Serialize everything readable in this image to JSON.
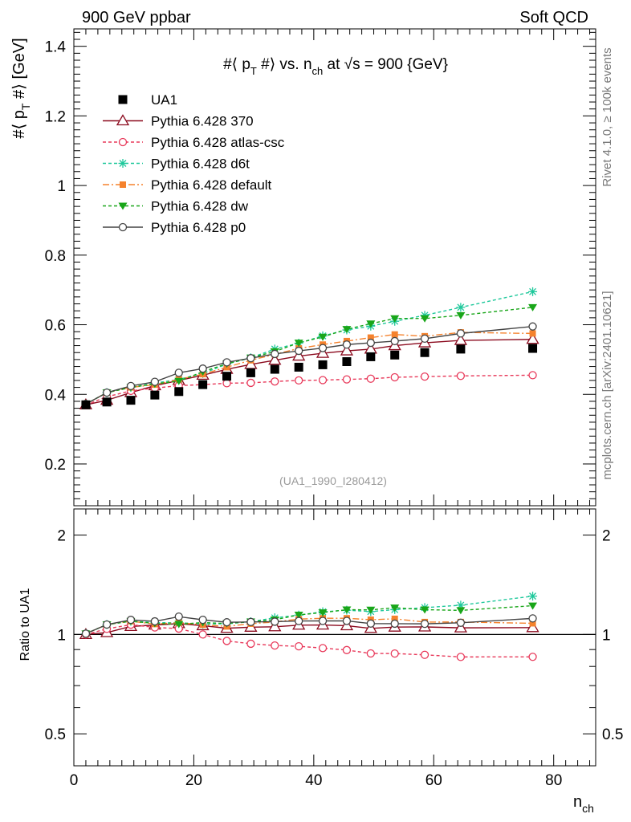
{
  "header": {
    "left": "900 GeV ppbar",
    "right": "Soft QCD"
  },
  "side": {
    "rivet": "Rivet 4.1.0, ≥ 100k events",
    "mcplots": "mcplots.cern.ch [arXiv:2401.10621]"
  },
  "chart_data": {
    "type": "line",
    "title": "#⟨ p_T #⟩ vs. n_ch at √s = 900 {GeV}",
    "title_parts": {
      "a": "#⟨ p",
      "b": "T",
      "c": " #⟩ vs. n",
      "d": "ch",
      "e": " at ",
      "f": "√s",
      "g": " = 900 {GeV}"
    },
    "ylabel_parts": {
      "a": "#⟨ p",
      "b": "T",
      "c": " #⟩ [GeV]"
    },
    "xlabel_parts": {
      "a": "n",
      "b": "ch"
    },
    "ratio_ylabel": "Ratio to UA1",
    "watermark": "(UA1_1990_I280412)",
    "xlim": [
      0,
      87
    ],
    "ylim": [
      0.08,
      1.45
    ],
    "ratio_ylim": [
      0.4,
      2.4
    ],
    "x_ticks": [
      "0",
      "20",
      "40",
      "60",
      "80"
    ],
    "y_ticks": [
      "0.2",
      "0.4",
      "0.6",
      "0.8",
      "1",
      "1.2",
      "1.4"
    ],
    "ratio_ticks": [
      "0.5",
      "1",
      "2"
    ],
    "x": [
      2,
      5.5,
      9.5,
      13.5,
      17.5,
      21.5,
      25.5,
      29.5,
      33.5,
      37.5,
      41.5,
      45.5,
      49.5,
      53.5,
      58.5,
      64.5,
      76.5
    ],
    "reference": {
      "name": "UA1",
      "values": [
        0.37,
        0.378,
        0.383,
        0.398,
        0.408,
        0.428,
        0.452,
        0.462,
        0.472,
        0.478,
        0.485,
        0.494,
        0.508,
        0.513,
        0.52,
        0.53,
        0.532
      ]
    },
    "series": [
      {
        "name": "Pythia 6.428 370",
        "color": "#8b0a1e",
        "dash": "",
        "marker": "triangle-open",
        "values": [
          0.37,
          0.383,
          0.405,
          0.425,
          0.44,
          0.455,
          0.472,
          0.486,
          0.498,
          0.51,
          0.518,
          0.525,
          0.53,
          0.54,
          0.548,
          0.555,
          0.558
        ]
      },
      {
        "name": "Pythia 6.428 atlas-csc",
        "color": "#e8395a",
        "dash": "4,3",
        "marker": "circle-open",
        "values": [
          0.37,
          0.393,
          0.41,
          0.418,
          0.425,
          0.428,
          0.432,
          0.433,
          0.437,
          0.44,
          0.441,
          0.443,
          0.445,
          0.449,
          0.451,
          0.453,
          0.455
        ]
      },
      {
        "name": "Pythia 6.428 d6t",
        "color": "#1ec89b",
        "dash": "4,3",
        "marker": "star",
        "values": [
          0.372,
          0.405,
          0.42,
          0.432,
          0.443,
          0.46,
          0.487,
          0.505,
          0.53,
          0.547,
          0.568,
          0.585,
          0.596,
          0.61,
          0.627,
          0.65,
          0.695
        ]
      },
      {
        "name": "Pythia 6.428 default",
        "color": "#f5822d",
        "dash": "8,3,2,3",
        "marker": "square",
        "values": [
          0.372,
          0.405,
          0.42,
          0.428,
          0.443,
          0.458,
          0.478,
          0.498,
          0.515,
          0.532,
          0.543,
          0.553,
          0.563,
          0.572,
          0.567,
          0.578,
          0.575
        ]
      },
      {
        "name": "Pythia 6.428 dw",
        "color": "#19a619",
        "dash": "4,3",
        "marker": "triangle-down",
        "values": [
          0.372,
          0.405,
          0.42,
          0.43,
          0.438,
          0.465,
          0.488,
          0.505,
          0.523,
          0.548,
          0.565,
          0.587,
          0.603,
          0.618,
          0.618,
          0.627,
          0.65
        ]
      },
      {
        "name": "Pythia 6.428 p0",
        "color": "#444444",
        "dash": "",
        "marker": "circle-open",
        "values": [
          0.372,
          0.405,
          0.424,
          0.436,
          0.462,
          0.474,
          0.492,
          0.504,
          0.516,
          0.525,
          0.533,
          0.543,
          0.548,
          0.553,
          0.56,
          0.575,
          0.595
        ]
      }
    ]
  }
}
